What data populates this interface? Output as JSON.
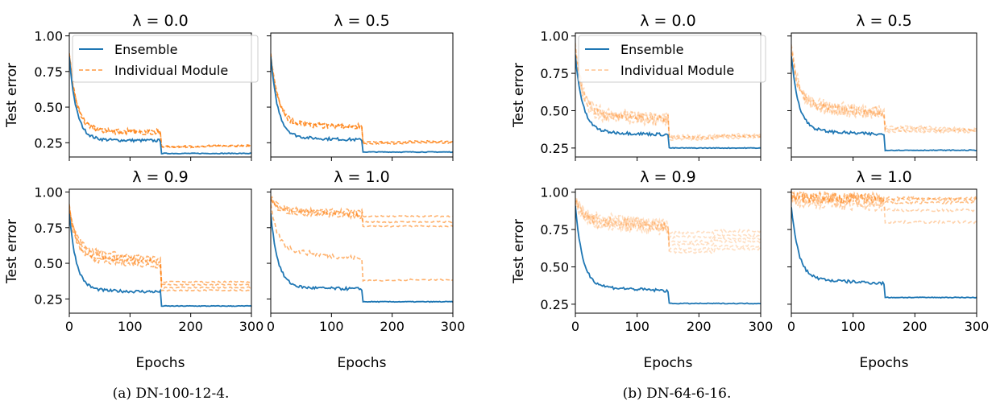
{
  "colors": {
    "ensemble": "#1f77b4",
    "module": "#ff7f0e"
  },
  "chart_data": [
    {
      "figure": "a",
      "caption": "(a) DN-100-12-4.",
      "type": "line",
      "xlabel": "Epochs",
      "ylabel": "Test error",
      "xlim": [
        0,
        300
      ],
      "ylim": [
        0.15,
        1.02
      ],
      "xticks": [
        0,
        100,
        200,
        300
      ],
      "yticks": [
        0.25,
        0.5,
        0.75,
        1.0
      ],
      "ytick_labels": [
        "0.25",
        "0.50",
        "0.75",
        "1.00"
      ],
      "legend": {
        "placement": "upper-left",
        "entries": [
          "Ensemble",
          "Individual Module"
        ]
      },
      "subplots": [
        {
          "title": "λ = 0.0",
          "ensemble": {
            "start": 0.85,
            "mid": 0.27,
            "end1": 0.265,
            "final": 0.175
          },
          "modules": [
            {
              "start": 0.88,
              "mid": 0.34,
              "end1": 0.33,
              "final": 0.225,
              "seg": 0.23,
              "opacity": 0.85
            },
            {
              "start": 0.87,
              "mid": 0.33,
              "end1": 0.32,
              "final": 0.22,
              "seg": 0.225,
              "opacity": 0.85
            }
          ]
        },
        {
          "title": "λ = 0.5",
          "ensemble": {
            "start": 0.85,
            "mid": 0.29,
            "end1": 0.27,
            "final": 0.185
          },
          "modules": [
            {
              "start": 0.87,
              "mid": 0.39,
              "end1": 0.37,
              "final": 0.255,
              "seg": 0.26,
              "opacity": 0.85
            },
            {
              "start": 0.86,
              "mid": 0.38,
              "end1": 0.36,
              "final": 0.245,
              "seg": 0.25,
              "opacity": 0.85
            }
          ]
        },
        {
          "title": "λ = 0.9",
          "ensemble": {
            "start": 0.85,
            "mid": 0.31,
            "end1": 0.3,
            "final": 0.2
          },
          "modules": [
            {
              "start": 0.9,
              "mid": 0.6,
              "end1": 0.53,
              "final": 0.37,
              "seg": 0.37,
              "opacity": 0.6
            },
            {
              "start": 0.88,
              "mid": 0.57,
              "end1": 0.51,
              "final": 0.35,
              "seg": 0.35,
              "opacity": 0.6
            },
            {
              "start": 0.89,
              "mid": 0.55,
              "end1": 0.5,
              "final": 0.33,
              "seg": 0.33,
              "opacity": 0.6
            },
            {
              "start": 0.87,
              "mid": 0.53,
              "end1": 0.48,
              "final": 0.31,
              "seg": 0.31,
              "opacity": 0.6
            }
          ]
        },
        {
          "title": "λ = 1.0",
          "ensemble": {
            "start": 0.85,
            "mid": 0.33,
            "end1": 0.32,
            "final": 0.23
          },
          "modules": [
            {
              "start": 0.96,
              "mid": 0.88,
              "end1": 0.86,
              "final": 0.83,
              "seg": 0.83,
              "opacity": 0.6
            },
            {
              "start": 0.95,
              "mid": 0.87,
              "end1": 0.84,
              "final": 0.79,
              "seg": 0.79,
              "opacity": 0.6
            },
            {
              "start": 0.94,
              "mid": 0.86,
              "end1": 0.83,
              "final": 0.76,
              "seg": 0.76,
              "opacity": 0.6
            },
            {
              "start": 0.9,
              "mid": 0.6,
              "end1": 0.53,
              "final": 0.38,
              "seg": 0.385,
              "opacity": 0.6
            }
          ]
        }
      ]
    },
    {
      "figure": "b",
      "caption": "(b) DN-64-6-16.",
      "type": "line",
      "xlabel": "Epochs",
      "ylabel": "Test error",
      "xlim": [
        0,
        300
      ],
      "ylim": [
        0.19,
        1.02
      ],
      "xticks": [
        0,
        100,
        200,
        300
      ],
      "yticks": [
        0.25,
        0.5,
        0.75,
        1.0
      ],
      "ytick_labels": [
        "0.25",
        "0.50",
        "0.75",
        "1.00"
      ],
      "legend": {
        "placement": "upper-left",
        "entries": [
          "Ensemble",
          "Individual Module"
        ]
      },
      "subplots": [
        {
          "title": "λ = 0.0",
          "ensemble": {
            "start": 0.87,
            "mid": 0.36,
            "end1": 0.34,
            "final": 0.25
          },
          "modules": [
            {
              "start": 0.92,
              "mid": 0.5,
              "end1": 0.46,
              "final": 0.33,
              "seg": 0.34,
              "opacity": 0.3
            },
            {
              "start": 0.9,
              "mid": 0.48,
              "end1": 0.45,
              "final": 0.32,
              "seg": 0.33,
              "opacity": 0.3
            },
            {
              "start": 0.91,
              "mid": 0.47,
              "end1": 0.44,
              "final": 0.32,
              "seg": 0.33,
              "opacity": 0.3
            },
            {
              "start": 0.89,
              "mid": 0.46,
              "end1": 0.43,
              "final": 0.31,
              "seg": 0.32,
              "opacity": 0.3
            }
          ]
        },
        {
          "title": "λ = 0.5",
          "ensemble": {
            "start": 0.87,
            "mid": 0.37,
            "end1": 0.34,
            "final": 0.235
          },
          "modules": [
            {
              "start": 0.93,
              "mid": 0.56,
              "end1": 0.5,
              "final": 0.39,
              "seg": 0.38,
              "opacity": 0.3
            },
            {
              "start": 0.92,
              "mid": 0.54,
              "end1": 0.49,
              "final": 0.38,
              "seg": 0.37,
              "opacity": 0.3
            },
            {
              "start": 0.91,
              "mid": 0.53,
              "end1": 0.48,
              "final": 0.37,
              "seg": 0.37,
              "opacity": 0.3
            },
            {
              "start": 0.9,
              "mid": 0.52,
              "end1": 0.47,
              "final": 0.36,
              "seg": 0.36,
              "opacity": 0.3
            }
          ]
        },
        {
          "title": "λ = 0.9",
          "ensemble": {
            "start": 0.9,
            "mid": 0.37,
            "end1": 0.34,
            "final": 0.255
          },
          "modules": [
            {
              "start": 0.96,
              "mid": 0.84,
              "end1": 0.79,
              "final": 0.73,
              "seg": 0.74,
              "opacity": 0.25
            },
            {
              "start": 0.95,
              "mid": 0.83,
              "end1": 0.78,
              "final": 0.7,
              "seg": 0.71,
              "opacity": 0.25
            },
            {
              "start": 0.95,
              "mid": 0.82,
              "end1": 0.77,
              "final": 0.67,
              "seg": 0.69,
              "opacity": 0.25
            },
            {
              "start": 0.94,
              "mid": 0.81,
              "end1": 0.76,
              "final": 0.65,
              "seg": 0.67,
              "opacity": 0.25
            },
            {
              "start": 0.94,
              "mid": 0.8,
              "end1": 0.75,
              "final": 0.62,
              "seg": 0.64,
              "opacity": 0.25
            },
            {
              "start": 0.93,
              "mid": 0.79,
              "end1": 0.74,
              "final": 0.6,
              "seg": 0.62,
              "opacity": 0.25
            }
          ]
        },
        {
          "title": "λ = 1.0",
          "ensemble": {
            "start": 0.9,
            "mid": 0.42,
            "end1": 0.39,
            "final": 0.295
          },
          "modules": [
            {
              "start": 0.98,
              "mid": 0.97,
              "end1": 0.96,
              "final": 0.96,
              "seg": 0.96,
              "opacity": 0.5
            },
            {
              "start": 0.98,
              "mid": 0.97,
              "end1": 0.96,
              "final": 0.95,
              "seg": 0.95,
              "opacity": 0.5
            },
            {
              "start": 0.97,
              "mid": 0.96,
              "end1": 0.95,
              "final": 0.93,
              "seg": 0.93,
              "opacity": 0.5
            },
            {
              "start": 0.97,
              "mid": 0.95,
              "end1": 0.93,
              "final": 0.88,
              "seg": 0.88,
              "opacity": 0.35
            },
            {
              "start": 0.96,
              "mid": 0.93,
              "end1": 0.9,
              "final": 0.8,
              "seg": 0.8,
              "opacity": 0.35
            }
          ]
        }
      ]
    }
  ]
}
